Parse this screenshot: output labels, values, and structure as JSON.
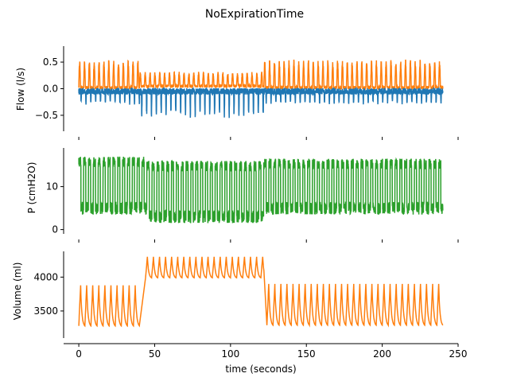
{
  "chart_data": {
    "type": "line",
    "title": "NoExpirationTime",
    "xlabel": "time (seconds)",
    "xlim": [
      -10,
      250
    ],
    "xticks": [
      0,
      50,
      100,
      150,
      200,
      250
    ],
    "colors": {
      "blue": "#1f77b4",
      "orange": "#ff7f0e",
      "green": "#2ca02c"
    },
    "panels": [
      {
        "ylabel": "Flow (l/s)",
        "ylim": [
          -0.8,
          0.8
        ],
        "yticks": [
          -0.5,
          0.0,
          0.5
        ],
        "ytick_labels": [
          "−0.5",
          "0.0",
          "0.5"
        ],
        "show_x_tick_labels": false,
        "series": [
          {
            "color": "#ff7f0e",
            "segments": [
              {
                "t0": 0,
                "t1": 40,
                "period": 3.2,
                "baseline": 0.02,
                "peak": 0.55
              },
              {
                "t0": 40,
                "t1": 122,
                "period": 3.2,
                "baseline": 0.05,
                "peak": 0.32
              },
              {
                "t0": 122,
                "t1": 240,
                "period": 3.2,
                "baseline": 0.02,
                "peak": 0.55
              }
            ]
          },
          {
            "color": "#1f77b4",
            "segments": [
              {
                "t0": 0,
                "t1": 40,
                "period": 3.2,
                "baseline": -0.05,
                "trough": -0.3
              },
              {
                "t0": 40,
                "t1": 122,
                "period": 3.2,
                "baseline": -0.05,
                "trough": -0.55
              },
              {
                "t0": 122,
                "t1": 240,
                "period": 3.2,
                "baseline": -0.05,
                "trough": -0.3
              }
            ]
          }
        ]
      },
      {
        "ylabel": "P (cmH2O)",
        "ylim": [
          -1,
          19
        ],
        "yticks": [
          0,
          10
        ],
        "ytick_labels": [
          "0",
          "10"
        ],
        "show_x_tick_labels": false,
        "series": [
          {
            "color": "#2ca02c",
            "segments": [
              {
                "t0": 0,
                "t1": 45,
                "period": 3.2,
                "low": 5,
                "high": 17
              },
              {
                "t0": 45,
                "t1": 122,
                "period": 3.2,
                "low": 3,
                "high": 16
              },
              {
                "t0": 122,
                "t1": 240,
                "period": 3.2,
                "low": 5,
                "high": 16.5
              }
            ]
          }
        ]
      },
      {
        "ylabel": "Volume (ml)",
        "ylim": [
          3100,
          4380
        ],
        "yticks": [
          3500,
          4000
        ],
        "ytick_labels": [
          "3500",
          "4000"
        ],
        "show_x_tick_labels": true,
        "series": [
          {
            "color": "#ff7f0e",
            "segments": [
              {
                "t0": 0,
                "t1": 40,
                "period": 4.0,
                "low": 3280,
                "high": 3880
              },
              {
                "t0": 44,
                "t1": 122,
                "period": 4.0,
                "low": 3990,
                "high": 4300
              },
              {
                "t0": 124,
                "t1": 240,
                "period": 4.0,
                "low": 3290,
                "high": 3900
              }
            ]
          }
        ]
      }
    ]
  }
}
